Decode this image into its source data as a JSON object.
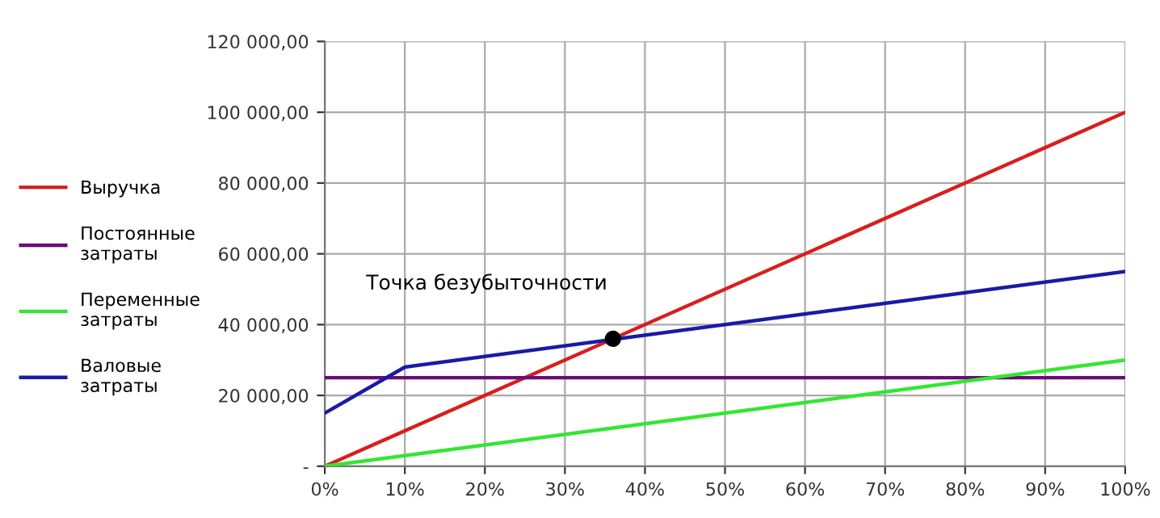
{
  "chart_data": {
    "type": "line",
    "xlim": [
      0,
      100
    ],
    "ylim": [
      0,
      120000
    ],
    "xticks": [
      {
        "value": 0,
        "label": "0%"
      },
      {
        "value": 10,
        "label": "10%"
      },
      {
        "value": 20,
        "label": "20%"
      },
      {
        "value": 30,
        "label": "30%"
      },
      {
        "value": 40,
        "label": "40%"
      },
      {
        "value": 50,
        "label": "50%"
      },
      {
        "value": 60,
        "label": "60%"
      },
      {
        "value": 70,
        "label": "70%"
      },
      {
        "value": 80,
        "label": "80%"
      },
      {
        "value": 90,
        "label": "90%"
      },
      {
        "value": 100,
        "label": "100%"
      }
    ],
    "yticks": [
      {
        "value": 0,
        "label": "-"
      },
      {
        "value": 20000,
        "label": "20 000,00"
      },
      {
        "value": 40000,
        "label": "40 000,00"
      },
      {
        "value": 60000,
        "label": "60 000,00"
      },
      {
        "value": 80000,
        "label": "80 000,00"
      },
      {
        "value": 100000,
        "label": "100 000,00"
      },
      {
        "value": 120000,
        "label": "120 000,00"
      }
    ],
    "series": [
      {
        "name": "Выручка",
        "color": "#d81e1e",
        "x": [
          0,
          100
        ],
        "values": [
          0,
          100000
        ]
      },
      {
        "name": "Постоянные\nзатраты",
        "color": "#6a0a78",
        "x": [
          0,
          100
        ],
        "values": [
          25000,
          25000
        ]
      },
      {
        "name": "Переменные\nзатраты",
        "color": "#33e633",
        "x": [
          0,
          100
        ],
        "values": [
          0,
          30000
        ]
      },
      {
        "name": "Валовые\nзатраты",
        "color": "#1a1aa6",
        "x": [
          0,
          10,
          100
        ],
        "values": [
          15000,
          28000,
          55000
        ]
      },
      {
        "type": "scatter",
        "marker": "circle",
        "color": "#000000",
        "x": [
          36
        ],
        "values": [
          36000
        ]
      }
    ],
    "annotations": [
      {
        "text": "Точка безубыточности",
        "x": 36,
        "y": 36000
      }
    ],
    "grid": true,
    "legend": "left",
    "line_style": "solid"
  }
}
